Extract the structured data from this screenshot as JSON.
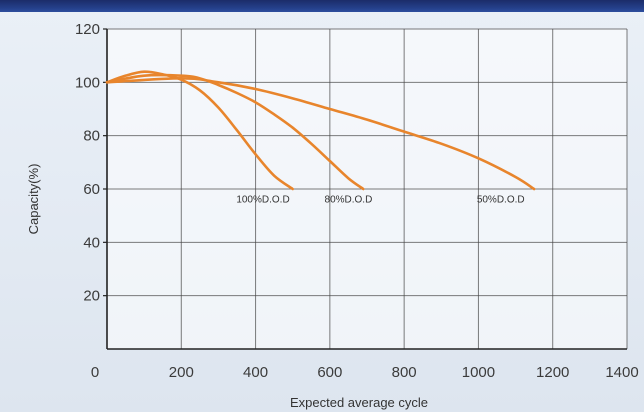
{
  "chart_data": {
    "type": "line",
    "xlabel": "Expected average cycle",
    "ylabel": "Capacity(%)",
    "xlim": [
      0,
      1400
    ],
    "ylim": [
      0,
      120
    ],
    "x_ticks": [
      "0",
      "200",
      "400",
      "600",
      "800",
      "1000",
      "1200",
      "1400"
    ],
    "y_ticks": [
      "20",
      "40",
      "60",
      "80",
      "100",
      "120"
    ],
    "grid": true,
    "line_color": "#e8852c",
    "grid_color": "#444444",
    "series": [
      {
        "name": "100%D.O.D",
        "x": [
          0,
          50,
          100,
          150,
          200,
          250,
          300,
          350,
          400,
          450,
          500
        ],
        "y": [
          100,
          102.5,
          104,
          103,
          101,
          97,
          90.5,
          82,
          73,
          65,
          60
        ]
      },
      {
        "name": "80%D.O.D",
        "x": [
          0,
          100,
          200,
          250,
          300,
          350,
          400,
          450,
          500,
          550,
          600,
          650,
          690
        ],
        "y": [
          100,
          102.5,
          102.5,
          101.5,
          99,
          96,
          92.5,
          88,
          83,
          77,
          70.5,
          64,
          60
        ]
      },
      {
        "name": "50%D.O.D",
        "x": [
          0,
          200,
          300,
          400,
          500,
          600,
          700,
          800,
          900,
          1000,
          1100,
          1150
        ],
        "y": [
          100,
          101.5,
          100,
          97.5,
          94,
          90,
          86,
          81.5,
          77,
          71.5,
          64.5,
          60
        ]
      }
    ],
    "annotations": [
      {
        "text": "100%D.O.D",
        "x": 420,
        "y": 56
      },
      {
        "text": "80%D.O.D",
        "x": 650,
        "y": 56
      },
      {
        "text": "50%D.O.D",
        "x": 1060,
        "y": 56
      }
    ]
  }
}
